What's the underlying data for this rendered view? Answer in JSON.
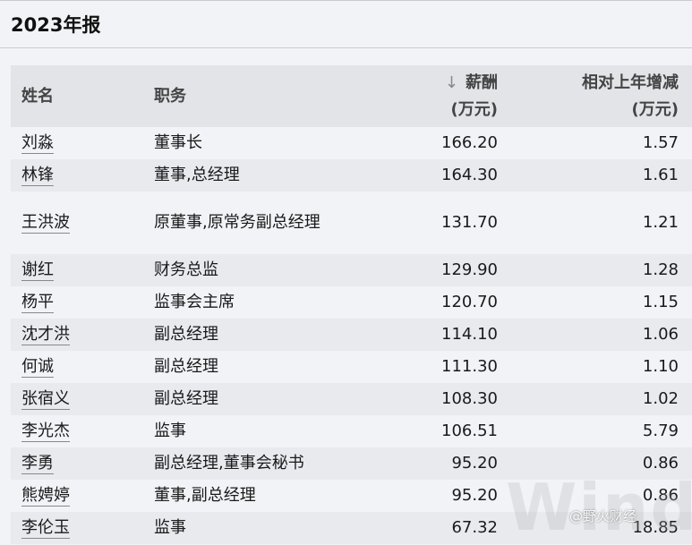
{
  "title": "2023年报",
  "headers": {
    "name": "姓名",
    "role": "职务",
    "salary_line1": "薪酬",
    "salary_line2": "(万元)",
    "change_line1": "相对上年增减",
    "change_line2": "(万元)",
    "sort_icon": "arrow-down-icon"
  },
  "rows": [
    {
      "name": "刘淼",
      "role": "董事长",
      "salary": "166.20",
      "change": "1.57"
    },
    {
      "name": "林锋",
      "role": "董事,总经理",
      "salary": "164.30",
      "change": "1.61"
    },
    {
      "name": "王洪波",
      "role": "原董事,原常务副总经理",
      "salary": "131.70",
      "change": "1.21"
    },
    {
      "name": "谢红",
      "role": "财务总监",
      "salary": "129.90",
      "change": "1.28"
    },
    {
      "name": "杨平",
      "role": "监事会主席",
      "salary": "120.70",
      "change": "1.15"
    },
    {
      "name": "沈才洪",
      "role": "副总经理",
      "salary": "114.10",
      "change": "1.06"
    },
    {
      "name": "何诚",
      "role": "副总经理",
      "salary": "111.30",
      "change": "1.10"
    },
    {
      "name": "张宿义",
      "role": "副总经理",
      "salary": "108.30",
      "change": "1.02"
    },
    {
      "name": "李光杰",
      "role": "监事",
      "salary": "106.51",
      "change": "5.79"
    },
    {
      "name": "李勇",
      "role": "副总经理,董事会秘书",
      "salary": "95.20",
      "change": "0.86"
    },
    {
      "name": "熊娉婷",
      "role": "董事,副总经理",
      "salary": "95.20",
      "change": "0.86"
    },
    {
      "name": "李伦玉",
      "role": "监事",
      "salary": "67.32",
      "change": "18.85"
    }
  ],
  "watermark": "Wind",
  "source_mark": "@野火财经"
}
